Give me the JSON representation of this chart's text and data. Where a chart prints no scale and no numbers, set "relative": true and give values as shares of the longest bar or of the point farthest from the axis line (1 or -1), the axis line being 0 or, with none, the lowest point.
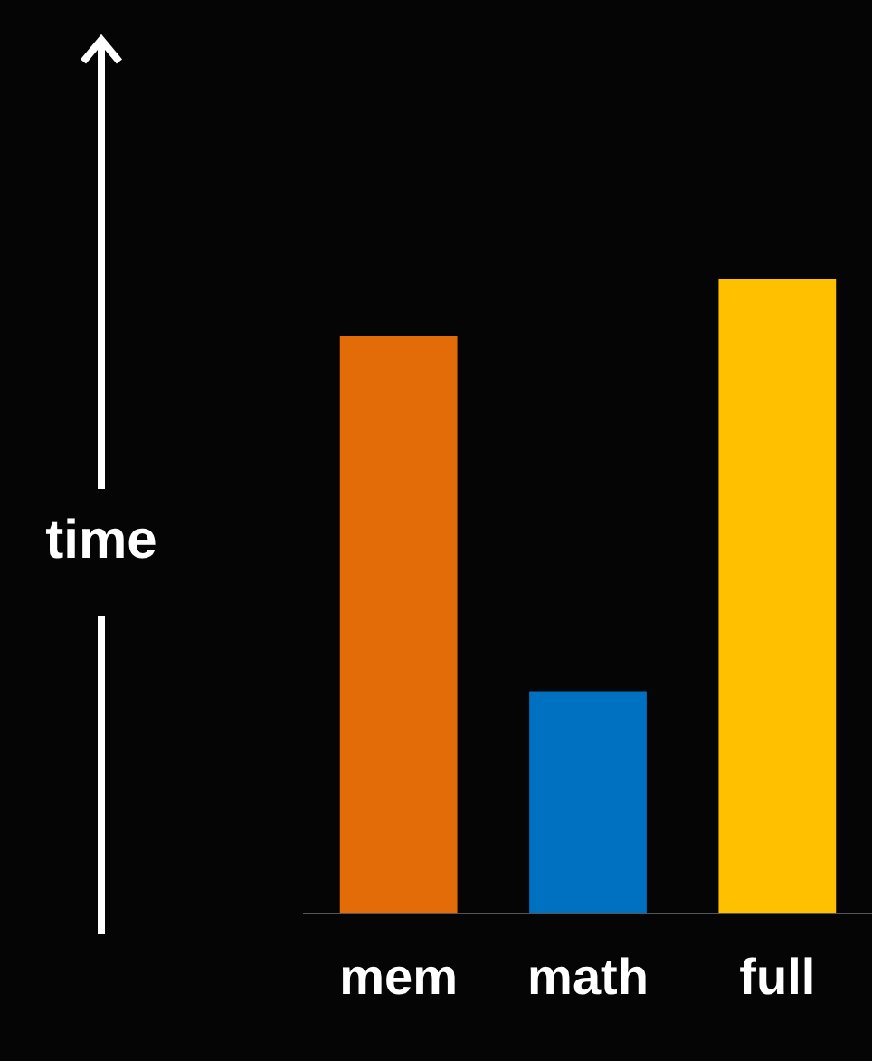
{
  "chart_data": {
    "type": "bar",
    "relative": true,
    "ylabel": "time",
    "categories": [
      "mem",
      "math",
      "full"
    ],
    "values": [
      0.91,
      0.35,
      1
    ],
    "colors": [
      "#e36c09",
      "#0070c0",
      "#ffc000"
    ],
    "legend": false
  }
}
